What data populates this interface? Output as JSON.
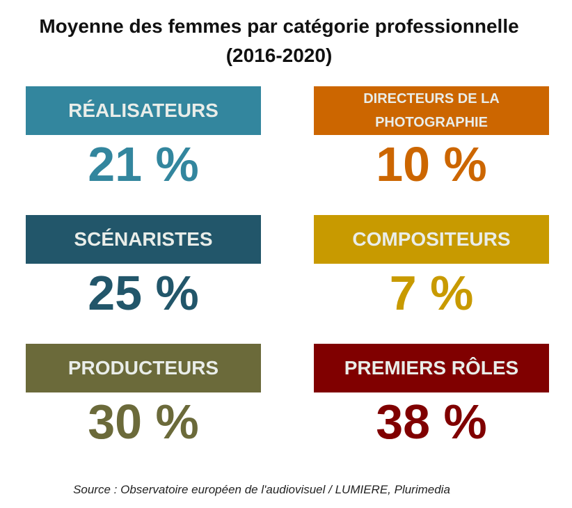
{
  "title_line1": "Moyenne des femmes par catégorie professionnelle",
  "title_line2": "(2016-2020)",
  "source": "Source : Observatoire européen de l'audiovisuel / LUMIERE, Plurimedia",
  "chart_data": {
    "type": "table",
    "title": "Moyenne des femmes par catégorie professionnelle (2016-2020)",
    "unit": "%",
    "categories": [
      "RÉALISATEURS",
      "DIRECTEURS DE LA PHOTOGRAPHIE",
      "SCÉNARISTES",
      "COMPOSITEURS",
      "PRODUCTEURS",
      "PREMIERS RÔLES"
    ],
    "values": [
      21,
      10,
      25,
      7,
      30,
      38
    ],
    "value_labels": [
      "21 %",
      "10 %",
      "25 %",
      "7 %",
      "30 %",
      "38 %"
    ],
    "colors": [
      "#33869e",
      "#cc6600",
      "#22566a",
      "#c89a00",
      "#6b6a3a",
      "#800000"
    ]
  }
}
